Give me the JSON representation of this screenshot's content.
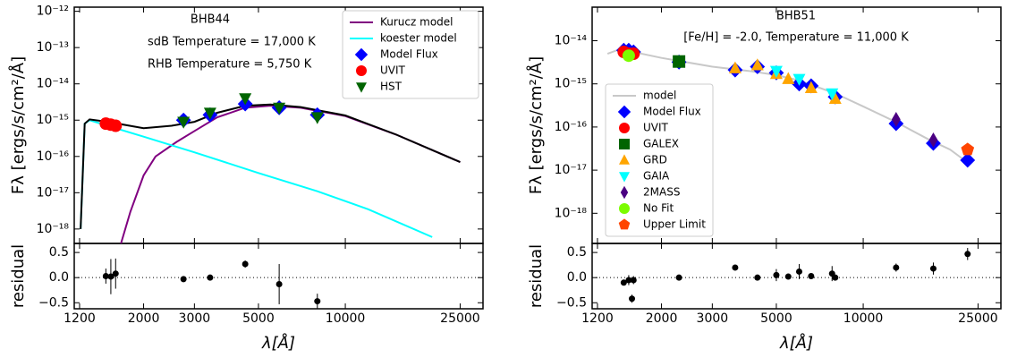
{
  "chart_data": [
    {
      "type": "sed",
      "log_x": true,
      "log_y": true,
      "legend": "upper right",
      "annotations": [
        "BHB44",
        "sdB Temperature = 17,000 K",
        "RHB Temperature = 5,750 K"
      ],
      "xlabel": "λ[Å]",
      "xlim": [
        1150,
        30000
      ],
      "xticks": [
        1200,
        2000,
        3000,
        5000,
        10000,
        25000
      ],
      "ylabel": "Fλ [ergs/s/cm²/Å]",
      "ylim": [
        4e-19,
        1.3e-12
      ],
      "yticks": [
        {
          "value": 1e-12,
          "label": "10⁻¹²"
        },
        {
          "value": 1e-13,
          "label": "10⁻¹³"
        },
        {
          "value": 1e-14,
          "label": "10⁻¹⁴"
        },
        {
          "value": 1e-15,
          "label": "10⁻¹⁵"
        },
        {
          "value": 1e-16,
          "label": "10⁻¹⁶"
        },
        {
          "value": 1e-17,
          "label": "10⁻¹⁷"
        },
        {
          "value": 1e-18,
          "label": "10⁻¹⁸"
        }
      ],
      "series": [
        {
          "name": "Kurucz model",
          "color": "#800080",
          "kind": "line",
          "x": [
            1670,
            1800,
            2000,
            2200,
            2600,
            3000,
            3600,
            4500,
            5500,
            7000,
            10000,
            15000,
            25000
          ],
          "values": [
            4e-19,
            3e-18,
            3e-17,
            1e-16,
            2.5e-16,
            5e-16,
            1.2e-15,
            2.2e-15,
            2.5e-15,
            2.2e-15,
            1.3e-15,
            4e-16,
            7e-17
          ]
        },
        {
          "name": "koester model",
          "color": "#00ffff",
          "kind": "line",
          "x": [
            1210,
            1250,
            1300,
            1500,
            2000,
            3000,
            5000,
            8000,
            12000,
            20000
          ],
          "values": [
            1e-18,
            8e-16,
            1e-15,
            7e-16,
            3.5e-16,
            1.3e-16,
            3.5e-17,
            1.1e-17,
            3.5e-18,
            6e-19
          ]
        },
        {
          "color": "#000000",
          "kind": "line",
          "x": [
            1210,
            1250,
            1300,
            1500,
            2000,
            2500,
            3000,
            3600,
            4500,
            5500,
            7000,
            10000,
            15000,
            25000
          ],
          "values": [
            1e-18,
            8e-16,
            1.05e-15,
            9e-16,
            6e-16,
            7e-16,
            9e-16,
            1.6e-15,
            2.5e-15,
            2.7e-15,
            2.3e-15,
            1.35e-15,
            4e-16,
            7e-17
          ]
        },
        {
          "name": "Model Flux",
          "color": "#0000ff",
          "kind": "marker",
          "marker": "diamond",
          "x": [
            2750,
            3400,
            4500,
            5900,
            8000
          ],
          "values": [
            1e-15,
            1.4e-15,
            2.8e-15,
            2.2e-15,
            1.4e-15
          ]
        },
        {
          "name": "UVIT",
          "color": "#ff0000",
          "kind": "marker",
          "marker": "circle",
          "x": [
            1480,
            1540,
            1600
          ],
          "values": [
            8e-16,
            7.5e-16,
            7e-16
          ]
        },
        {
          "name": "HST",
          "color": "#006400",
          "kind": "marker",
          "marker": "triangle-down",
          "x": [
            2750,
            3400,
            4500,
            5900,
            8000
          ],
          "values": [
            9e-16,
            1.6e-15,
            4e-15,
            2.2e-15,
            1.2e-15
          ]
        }
      ],
      "residual": {
        "ylabel": "residual",
        "ylim": [
          -0.62,
          0.68
        ],
        "hline": 0,
        "color": "#000000",
        "yticks": [
          0.5,
          {
            "value": 0,
            "label": "0.0"
          },
          {
            "value": -0.5,
            "label": "−0.5"
          }
        ],
        "x": [
          1480,
          1540,
          1600,
          2750,
          3400,
          4500,
          5900,
          8000
        ],
        "values": [
          0.03,
          0.02,
          0.08,
          -0.03,
          0.0,
          0.27,
          -0.13,
          -0.47
        ],
        "errors": [
          0.15,
          0.35,
          0.3,
          0.05,
          0.02,
          0.07,
          0.4,
          0.15
        ]
      }
    },
    {
      "type": "sed",
      "log_x": true,
      "log_y": true,
      "legend": "lower left",
      "annotations": [
        "BHB51",
        "[Fe/H] = -2.0, Temperature = 11,000 K"
      ],
      "xlabel": "λ[Å]",
      "xlim": [
        1150,
        30000
      ],
      "xticks": [
        1200,
        2000,
        3000,
        5000,
        10000,
        25000
      ],
      "ylabel": "Fλ [ergs/s/cm²/Å]",
      "ylim": [
        2e-19,
        6e-14
      ],
      "yticks": [
        {
          "value": 1e-14,
          "label": "10⁻¹⁴"
        },
        {
          "value": 1e-15,
          "label": "10⁻¹⁵"
        },
        {
          "value": 1e-16,
          "label": "10⁻¹⁶"
        },
        {
          "value": 1e-17,
          "label": "10⁻¹⁷"
        },
        {
          "value": 1e-18,
          "label": "10⁻¹⁸"
        }
      ],
      "series": [
        {
          "name": "model",
          "color": "#c8c8c8",
          "kind": "line",
          "x": [
            1300,
            1400,
            1500,
            2000,
            3000,
            4000,
            5000,
            6000,
            8000,
            10000,
            13000,
            17000,
            20000,
            23000
          ],
          "values": [
            5e-15,
            6e-15,
            6e-15,
            4e-15,
            2.5e-15,
            2e-15,
            1.6e-15,
            1.2e-15,
            6e-16,
            3e-16,
            1.3e-16,
            5e-17,
            3e-17,
            1.5e-17
          ]
        },
        {
          "name": "Model Flux",
          "color": "#0000ff",
          "kind": "marker",
          "marker": "diamond",
          "x": [
            1480,
            1540,
            1600,
            2300,
            3600,
            4300,
            5000,
            6000,
            6600,
            8000,
            13000,
            17500,
            23000
          ],
          "values": [
            6e-15,
            6e-15,
            5.5e-15,
            3.2e-15,
            2.1e-15,
            2.5e-15,
            1.8e-15,
            1e-15,
            9e-16,
            5e-16,
            1.2e-16,
            4.2e-17,
            1.7e-17
          ]
        },
        {
          "name": "UVIT",
          "color": "#ff0000",
          "kind": "marker",
          "marker": "circle",
          "x": [
            1480,
            1540,
            1600
          ],
          "values": [
            5.5e-15,
            5e-15,
            5e-15
          ]
        },
        {
          "name": "GALEX",
          "color": "#006400",
          "kind": "marker",
          "marker": "square",
          "x": [
            2300
          ],
          "values": [
            3.3e-15
          ]
        },
        {
          "name": "GRD",
          "color": "#ffa500",
          "kind": "marker",
          "marker": "triangle-up",
          "x": [
            3600,
            4300,
            5000,
            5500,
            6600,
            8000
          ],
          "values": [
            2.3e-15,
            2.7e-15,
            1.7e-15,
            1.3e-15,
            8e-16,
            4.5e-16
          ]
        },
        {
          "name": "GAIA",
          "color": "#00ffff",
          "kind": "marker",
          "marker": "triangle-down",
          "x": [
            5000,
            6000,
            7800
          ],
          "values": [
            2e-15,
            1.3e-15,
            6e-16
          ]
        },
        {
          "name": "2MASS",
          "color": "#4b0082",
          "kind": "marker",
          "marker": "thin-diamond",
          "x": [
            13000,
            17500
          ],
          "values": [
            1.5e-16,
            5e-17
          ]
        },
        {
          "name": "No Fit",
          "color": "#7cfc00",
          "kind": "marker",
          "marker": "circle",
          "x": [
            1540
          ],
          "values": [
            4.5e-15
          ]
        },
        {
          "name": "Upper Limit",
          "color": "#ff4500",
          "kind": "marker",
          "marker": "pentagon",
          "x": [
            23000
          ],
          "values": [
            3e-17
          ]
        }
      ],
      "residual": {
        "ylabel": "residual",
        "ylim": [
          -0.62,
          0.68
        ],
        "hline": 0,
        "color": "#000000",
        "yticks": [
          0.5,
          {
            "value": 0,
            "label": "0.0"
          },
          {
            "value": -0.5,
            "label": "−0.5"
          }
        ],
        "x": [
          1480,
          1540,
          1580,
          1600,
          2300,
          3600,
          4300,
          5000,
          5500,
          6000,
          6600,
          7800,
          8000,
          13000,
          17500,
          23000
        ],
        "values": [
          -0.1,
          -0.05,
          -0.42,
          -0.05,
          0.0,
          0.2,
          0.0,
          0.05,
          0.02,
          0.12,
          0.03,
          0.08,
          0.0,
          0.2,
          0.18,
          0.47
        ],
        "errors": [
          0.05,
          0.1,
          0.08,
          0.08,
          0.05,
          0.04,
          0.02,
          0.12,
          0.03,
          0.15,
          0.03,
          0.15,
          0.05,
          0.08,
          0.12,
          0.12
        ]
      }
    }
  ]
}
